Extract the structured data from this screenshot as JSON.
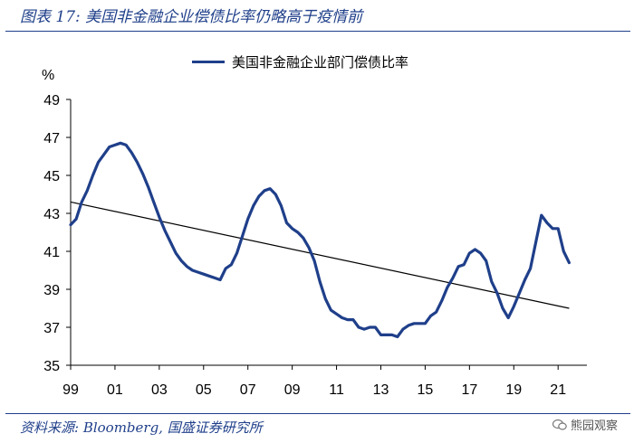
{
  "figure": {
    "title": "图表 17:  美国非金融企业偿债比率仍略高于疫情前",
    "source": "资料来源: Bloomberg, 国盛证券研究所",
    "watermark": "熊园观察"
  },
  "colors": {
    "series": "#1f3f8a",
    "trend": "#000000",
    "frame": "#1f3f8a"
  },
  "chart_data": {
    "type": "line",
    "title": "",
    "xlabel": "",
    "ylabel": "%",
    "ylim": [
      35,
      49
    ],
    "xlim": [
      1999,
      2022.3
    ],
    "yticks": [
      "35",
      "37",
      "39",
      "41",
      "43",
      "45",
      "47",
      "49"
    ],
    "xticks": [
      "99",
      "01",
      "03",
      "05",
      "07",
      "09",
      "11",
      "13",
      "15",
      "17",
      "19",
      "21"
    ],
    "xtick_years": [
      1999,
      2001,
      2003,
      2005,
      2007,
      2009,
      2011,
      2013,
      2015,
      2017,
      2019,
      2021
    ],
    "legend": "top",
    "grid": false,
    "series": [
      {
        "name": "美国非金融企业部门偿债比率",
        "x": [
          1999.0,
          1999.25,
          1999.5,
          1999.75,
          2000.0,
          2000.25,
          2000.5,
          2000.75,
          2001.0,
          2001.25,
          2001.5,
          2001.75,
          2002.0,
          2002.25,
          2002.5,
          2002.75,
          2003.0,
          2003.25,
          2003.5,
          2003.75,
          2004.0,
          2004.25,
          2004.5,
          2004.75,
          2005.0,
          2005.25,
          2005.5,
          2005.75,
          2006.0,
          2006.25,
          2006.5,
          2006.75,
          2007.0,
          2007.25,
          2007.5,
          2007.75,
          2008.0,
          2008.25,
          2008.5,
          2008.75,
          2009.0,
          2009.25,
          2009.5,
          2009.75,
          2010.0,
          2010.25,
          2010.5,
          2010.75,
          2011.0,
          2011.25,
          2011.5,
          2011.75,
          2012.0,
          2012.25,
          2012.5,
          2012.75,
          2013.0,
          2013.25,
          2013.5,
          2013.75,
          2014.0,
          2014.25,
          2014.5,
          2014.75,
          2015.0,
          2015.25,
          2015.5,
          2015.75,
          2016.0,
          2016.25,
          2016.5,
          2016.75,
          2017.0,
          2017.25,
          2017.5,
          2017.75,
          2018.0,
          2018.25,
          2018.5,
          2018.75,
          2019.0,
          2019.25,
          2019.5,
          2019.75,
          2020.0,
          2020.25,
          2020.5,
          2020.75,
          2021.0,
          2021.25,
          2021.5
        ],
        "values": [
          42.4,
          42.7,
          43.6,
          44.2,
          45.0,
          45.7,
          46.1,
          46.5,
          46.6,
          46.7,
          46.6,
          46.2,
          45.7,
          45.1,
          44.4,
          43.6,
          42.8,
          42.1,
          41.5,
          40.9,
          40.5,
          40.2,
          40.0,
          39.9,
          39.8,
          39.7,
          39.6,
          39.5,
          40.1,
          40.3,
          40.9,
          41.8,
          42.7,
          43.4,
          43.9,
          44.2,
          44.3,
          44.0,
          43.4,
          42.5,
          42.2,
          42.0,
          41.7,
          41.2,
          40.5,
          39.4,
          38.5,
          37.9,
          37.7,
          37.5,
          37.4,
          37.4,
          37.0,
          36.9,
          37.0,
          37.0,
          36.6,
          36.6,
          36.6,
          36.5,
          36.9,
          37.1,
          37.2,
          37.2,
          37.2,
          37.6,
          37.8,
          38.4,
          39.1,
          39.6,
          40.2,
          40.3,
          40.9,
          41.1,
          40.9,
          40.5,
          39.4,
          38.8,
          38.0,
          37.5,
          38.1,
          38.8,
          39.5,
          40.1,
          41.5,
          42.9,
          42.5,
          42.2,
          42.2,
          41.0,
          40.4
        ]
      }
    ],
    "trendline": {
      "x": [
        1999.0,
        2021.5
      ],
      "values": [
        43.6,
        38.0
      ]
    }
  }
}
